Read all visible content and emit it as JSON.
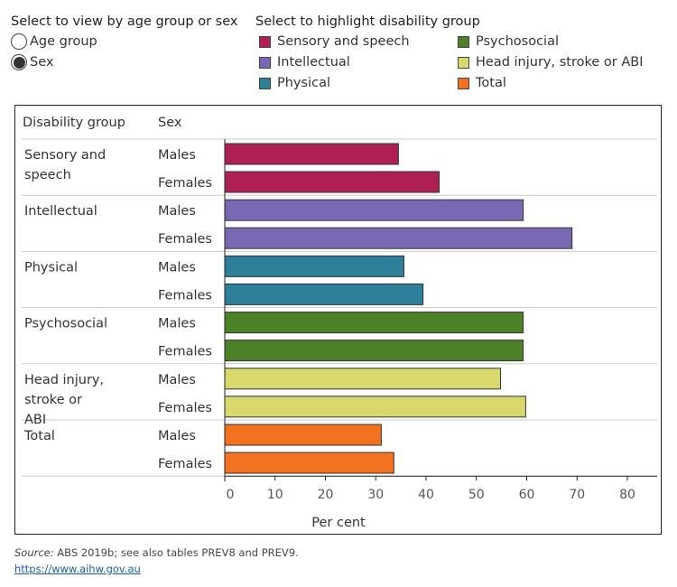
{
  "controls": {
    "view_title": "Select to view by age group or sex",
    "view_options": [
      {
        "label": "Age group",
        "selected": false
      },
      {
        "label": "Sex",
        "selected": true
      }
    ],
    "highlight_title": "Select to highlight disability group",
    "highlight_options": [
      {
        "label": "Sensory and speech",
        "color": "#ad1f55"
      },
      {
        "label": "Intellectual",
        "color": "#7b68b4"
      },
      {
        "label": "Physical",
        "color": "#2e7f99"
      },
      {
        "label": "Psychosocial",
        "color": "#4d8128"
      },
      {
        "label": "Head injury, stroke or ABI",
        "color": "#d8d86c"
      },
      {
        "label": "Total",
        "color": "#f27221"
      }
    ]
  },
  "table": {
    "col1": "Disability group",
    "col2": "Sex"
  },
  "chart_data": {
    "type": "bar",
    "orientation": "horizontal",
    "groups": [
      {
        "label": "Sensory and speech",
        "color": "#ad1f55",
        "rows": [
          {
            "sex": "Males",
            "value": 34.5
          },
          {
            "sex": "Females",
            "value": 42.6
          }
        ]
      },
      {
        "label": "Intellectual",
        "color": "#7b68b4",
        "rows": [
          {
            "sex": "Males",
            "value": 59.3
          },
          {
            "sex": "Females",
            "value": 69.0
          }
        ]
      },
      {
        "label": "Physical",
        "color": "#2e7f99",
        "rows": [
          {
            "sex": "Males",
            "value": 35.6
          },
          {
            "sex": "Females",
            "value": 39.4
          }
        ]
      },
      {
        "label": "Psychosocial",
        "color": "#4d8128",
        "rows": [
          {
            "sex": "Males",
            "value": 59.3
          },
          {
            "sex": "Females",
            "value": 59.3
          }
        ]
      },
      {
        "label": "Head injury, stroke or ABI",
        "color": "#d8d86c",
        "rows": [
          {
            "sex": "Males",
            "value": 54.8
          },
          {
            "sex": "Females",
            "value": 59.8
          }
        ]
      },
      {
        "label": "Total",
        "color": "#f27221",
        "rows": [
          {
            "sex": "Males",
            "value": 31.1
          },
          {
            "sex": "Females",
            "value": 33.6
          }
        ]
      }
    ],
    "xlabel": "Per cent",
    "xlim": [
      0,
      80
    ],
    "xticks": [
      "0",
      "10",
      "20",
      "30",
      "40",
      "50",
      "60",
      "70",
      "80"
    ],
    "grid": false
  },
  "footer": {
    "source_label": "Source:",
    "source_text": " ABS 2019b; see also tables PREV8 and PREV9.",
    "link": "https://www.aihw.gov.au"
  }
}
